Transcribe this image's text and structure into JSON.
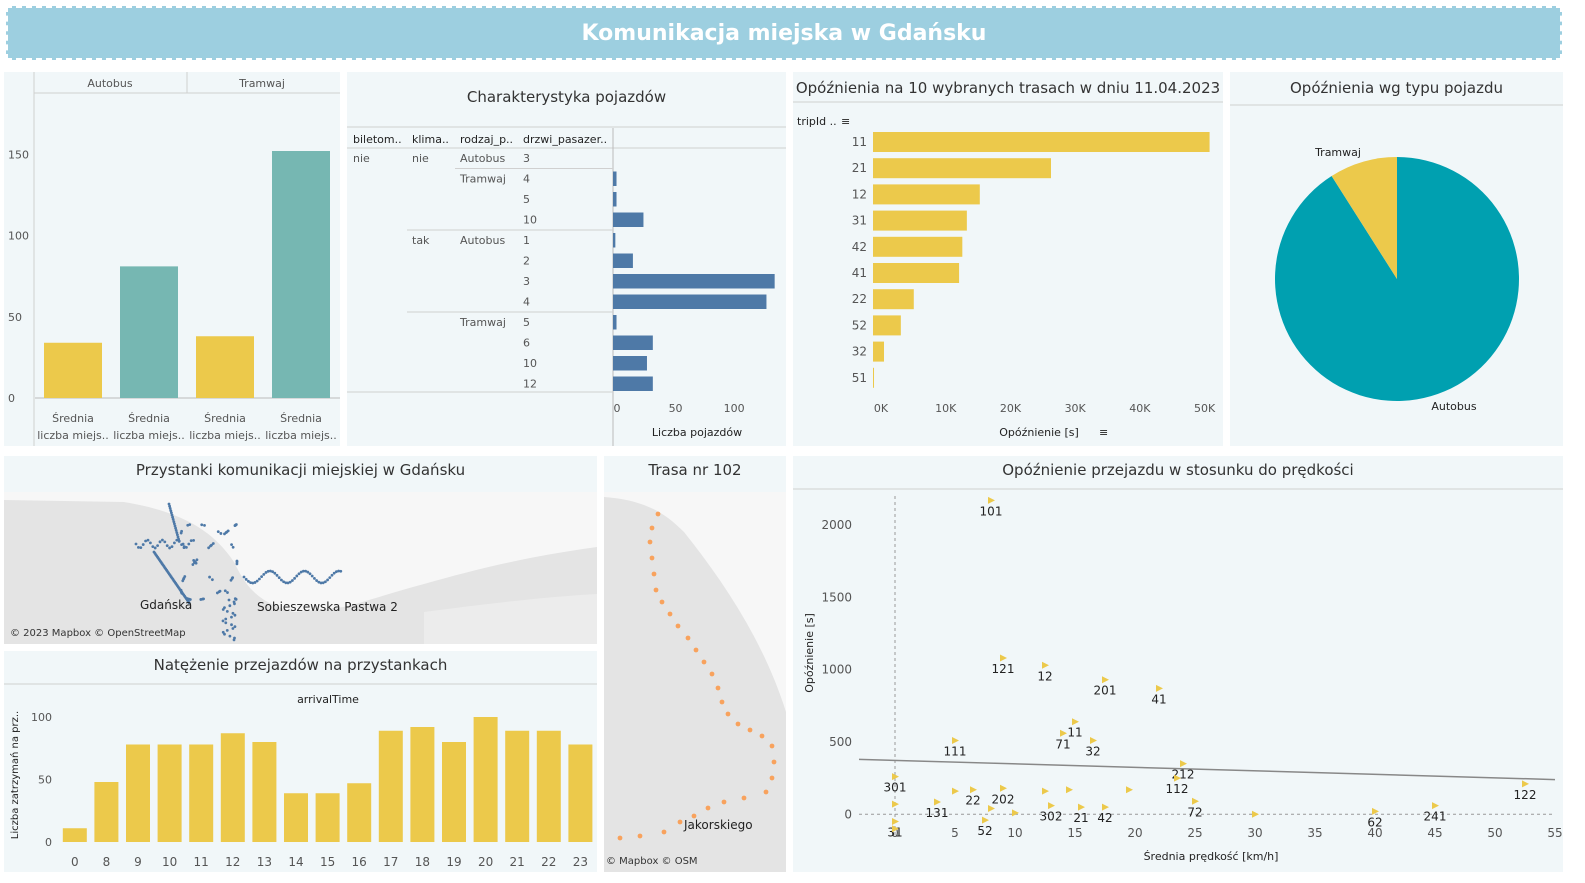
{
  "header": {
    "title": "Komunikacja miejska w Gdańsku"
  },
  "colors": {
    "yellow": "#ecc94b",
    "teal": "#76b7b2",
    "blue": "#4e79a7",
    "pieTeal": "#00a0b0",
    "orange": "#f8a25d"
  },
  "avgCapacity": {
    "groups": [
      "Autobus",
      "Tramwaj"
    ],
    "measure_label": "Średnia liczba miejs..",
    "bar_label_line1": "Średnia",
    "bar_label_line2": "liczba miejs..",
    "ticks": [
      "0",
      "50",
      "100",
      "150"
    ]
  },
  "vehicleChar": {
    "title": "Charakterystyka pojazdów",
    "columns": [
      "biletom..",
      "klima..",
      "rodzaj_p..",
      "drzwi_pasazer.."
    ],
    "axis_label": "Liczba pojazdów",
    "ticks": [
      "0",
      "50",
      "100"
    ],
    "rows": [
      {
        "bilet": "nie",
        "klima": "nie",
        "rodzaj": "Autobus",
        "drzwi": "3",
        "value": 0
      },
      {
        "bilet": "",
        "klima": "",
        "rodzaj": "Tramwaj",
        "drzwi": "4",
        "value": 3
      },
      {
        "bilet": "",
        "klima": "",
        "rodzaj": "",
        "drzwi": "5",
        "value": 3
      },
      {
        "bilet": "",
        "klima": "",
        "rodzaj": "",
        "drzwi": "10",
        "value": 26
      },
      {
        "bilet": "",
        "klima": "tak",
        "rodzaj": "Autobus",
        "drzwi": "1",
        "value": 2
      },
      {
        "bilet": "",
        "klima": "",
        "rodzaj": "",
        "drzwi": "2",
        "value": 17
      },
      {
        "bilet": "",
        "klima": "",
        "rodzaj": "",
        "drzwi": "3",
        "value": 138
      },
      {
        "bilet": "",
        "klima": "",
        "rodzaj": "",
        "drzwi": "4",
        "value": 131
      },
      {
        "bilet": "",
        "klima": "",
        "rodzaj": "Tramwaj",
        "drzwi": "5",
        "value": 3
      },
      {
        "bilet": "",
        "klima": "",
        "rodzaj": "",
        "drzwi": "6",
        "value": 34
      },
      {
        "bilet": "",
        "klima": "",
        "rodzaj": "",
        "drzwi": "10",
        "value": 29
      },
      {
        "bilet": "",
        "klima": "",
        "rodzaj": "",
        "drzwi": "12",
        "value": 34
      }
    ]
  },
  "delayRoutes": {
    "title": "Opóźnienia na 10 wybranych trasach w dniu 11.04.2023",
    "dim_label": "tripId ..",
    "axis_label": "Opóźnienie [s]",
    "ticks": [
      "0K",
      "10K",
      "20K",
      "30K",
      "40K",
      "50K"
    ]
  },
  "delayType": {
    "title": "Opóźnienia wg typu pojazdu",
    "label_tram": "Tramwaj",
    "label_bus": "Autobus"
  },
  "stopsMap": {
    "title": "Przystanki komunikacji miejskiej w Gdańsku",
    "label_city": "Gdańska",
    "label_stop": "Sobieszewska Pastwa 2",
    "credit": "© 2023 Mapbox © OpenStreetMap"
  },
  "route102": {
    "title": "Trasa nr 102",
    "label_street": "Jakorskiego",
    "credit": "© Mapbox © OSM"
  },
  "stopTraffic": {
    "title": "Natężenie przejazdów na przystankach",
    "dim_label": "arrivalTime",
    "ylabel": "Liczba zatrzymań na prz..",
    "yticks": [
      "0",
      "50",
      "100"
    ]
  },
  "scatter": {
    "title": "Opóźnienie przejazdu w stosunku do prędkości",
    "xlabel": "Średnia prędkość [km/h]",
    "ylabel": "Opóźnienie [s]",
    "xticks": [
      "0",
      "5",
      "10",
      "15",
      "20",
      "25",
      "30",
      "35",
      "40",
      "45",
      "50",
      "55"
    ],
    "yticks": [
      "0",
      "500",
      "1000",
      "1500",
      "2000"
    ]
  },
  "chart_data": [
    {
      "type": "bar",
      "title": "",
      "categories": [
        "Autobus",
        "Tramwaj"
      ],
      "series": [
        {
          "name": "Średnia liczba miejsc (1)",
          "values": [
            34,
            38
          ]
        },
        {
          "name": "Średnia liczba miejsc (2)",
          "values": [
            81,
            152
          ]
        }
      ],
      "ylim": [
        0,
        160
      ]
    },
    {
      "type": "bar",
      "title": "Opóźnienia na 10 wybranych trasach w dniu 11.04.2023",
      "categories": [
        "11",
        "21",
        "12",
        "31",
        "42",
        "41",
        "22",
        "52",
        "32",
        "51"
      ],
      "values": [
        52000,
        27500,
        16500,
        14500,
        13800,
        13300,
        6300,
        4300,
        1700,
        100
      ],
      "xlabel": "Opóźnienie [s]",
      "ylabel": "tripId",
      "xlim": [
        0,
        55000
      ]
    },
    {
      "type": "pie",
      "title": "Opóźnienia wg typu pojazdu",
      "categories": [
        "Autobus",
        "Tramwaj"
      ],
      "values": [
        91,
        9
      ]
    },
    {
      "type": "bar",
      "title": "Natężenie przejazdów na przystankach",
      "categories": [
        "0",
        "8",
        "9",
        "10",
        "11",
        "12",
        "13",
        "14",
        "15",
        "16",
        "17",
        "18",
        "19",
        "20",
        "21",
        "22",
        "23"
      ],
      "values": [
        11,
        48,
        78,
        78,
        78,
        87,
        80,
        39,
        39,
        47,
        89,
        92,
        80,
        100,
        89,
        89,
        78
      ],
      "xlabel": "arrivalTime",
      "ylabel": "Liczba zatrzymań na prz..",
      "ylim": [
        0,
        105
      ]
    },
    {
      "type": "scatter",
      "title": "Opóźnienie przejazdu w stosunku do prędkości",
      "xlabel": "Średnia prędkość [km/h]",
      "ylabel": "Opóźnienie [s]",
      "xlim": [
        -3,
        55
      ],
      "ylim": [
        -150,
        2200
      ],
      "points": [
        {
          "x": 8,
          "y": 2170,
          "label": "101"
        },
        {
          "x": 9,
          "y": 1080,
          "label": "121"
        },
        {
          "x": 12.5,
          "y": 1030,
          "label": "12"
        },
        {
          "x": 17.5,
          "y": 930,
          "label": "201"
        },
        {
          "x": 22,
          "y": 870,
          "label": "41"
        },
        {
          "x": 5,
          "y": 510,
          "label": "111"
        },
        {
          "x": 15,
          "y": 640,
          "label": "11"
        },
        {
          "x": 14,
          "y": 560,
          "label": "71"
        },
        {
          "x": 16.5,
          "y": 510,
          "label": "32"
        },
        {
          "x": 0,
          "y": 260,
          "label": "301"
        },
        {
          "x": 24,
          "y": 350,
          "label": "212"
        },
        {
          "x": 23.5,
          "y": 250,
          "label": "112"
        },
        {
          "x": 52.5,
          "y": 210,
          "label": "122"
        },
        {
          "x": 6.5,
          "y": 170,
          "label": "22"
        },
        {
          "x": 9,
          "y": 180,
          "label": "202"
        },
        {
          "x": 3.5,
          "y": 85,
          "label": "131"
        },
        {
          "x": 13,
          "y": 60,
          "label": "302"
        },
        {
          "x": 15.5,
          "y": 50,
          "label": "21"
        },
        {
          "x": 17.5,
          "y": 50,
          "label": "42"
        },
        {
          "x": 7.5,
          "y": -40,
          "label": "52"
        },
        {
          "x": 0,
          "y": -50,
          "label": "31"
        },
        {
          "x": 25,
          "y": 90,
          "label": "72"
        },
        {
          "x": 40,
          "y": 20,
          "label": "62"
        },
        {
          "x": 45,
          "y": 60,
          "label": "241"
        },
        {
          "x": 0,
          "y": 70,
          "label": ""
        },
        {
          "x": 0,
          "y": -100,
          "label": ""
        },
        {
          "x": 5,
          "y": 160,
          "label": ""
        },
        {
          "x": 8,
          "y": 40,
          "label": ""
        },
        {
          "x": 10,
          "y": 10,
          "label": ""
        },
        {
          "x": 12.5,
          "y": 160,
          "label": ""
        },
        {
          "x": 14.5,
          "y": 170,
          "label": ""
        },
        {
          "x": 19.5,
          "y": 170,
          "label": ""
        },
        {
          "x": 30,
          "y": 0,
          "label": ""
        }
      ],
      "trend": {
        "y_at_x_min": 380,
        "y_at_x_max": 240
      }
    }
  ]
}
